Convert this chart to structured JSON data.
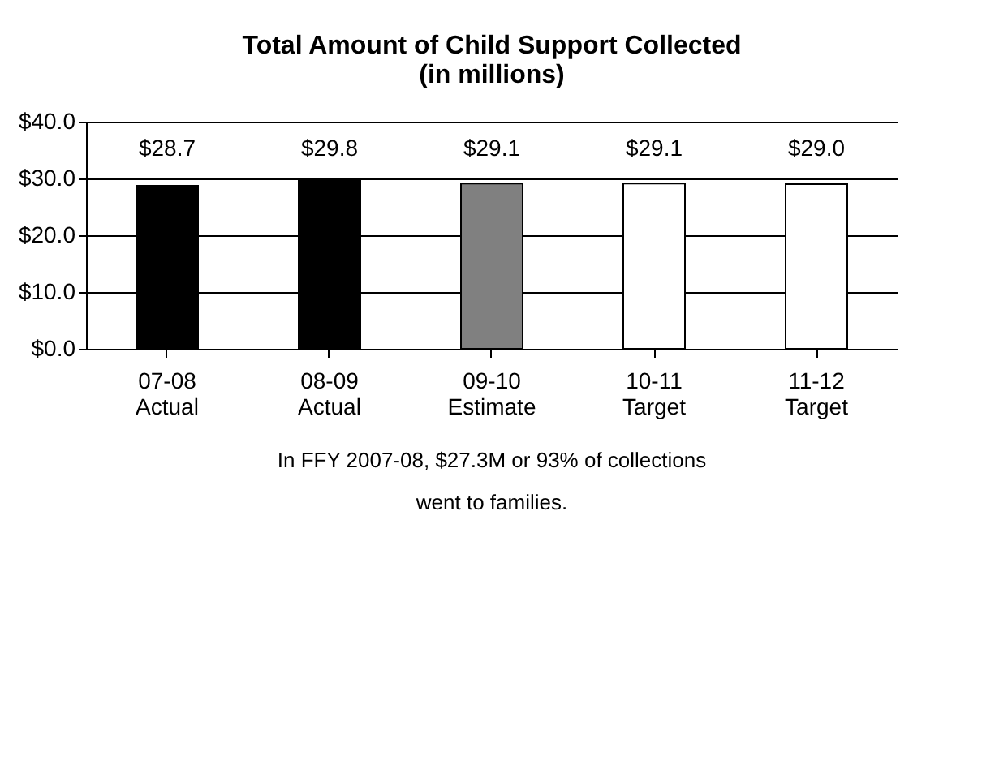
{
  "chart_data": {
    "type": "bar",
    "title": "Total Amount of Child Support Collected (in millions)",
    "categories": [
      "07-08\nActual",
      "08-09\nActual",
      "09-10\nEstimate",
      "10-11\nTarget",
      "11-12\nTarget"
    ],
    "values": [
      28.7,
      29.8,
      29.1,
      29.1,
      29.0
    ],
    "colors": [
      "#000000",
      "#000000",
      "#808080",
      "#ffffff",
      "#ffffff"
    ],
    "value_labels": [
      "$28.7",
      "$29.8",
      "$29.1",
      "$29.1",
      "$29.0"
    ],
    "ylim": [
      0,
      40
    ],
    "yticks": [
      {
        "value": 0,
        "label": "$0.0"
      },
      {
        "value": 10,
        "label": "$10.0"
      },
      {
        "value": 20,
        "label": "$20.0"
      },
      {
        "value": 30,
        "label": "$30.0"
      },
      {
        "value": 40,
        "label": "$40.0"
      }
    ],
    "grid": "y",
    "annotations": [
      "In FFY 2007-08, $27.3M or 93% of collections went to families."
    ]
  }
}
